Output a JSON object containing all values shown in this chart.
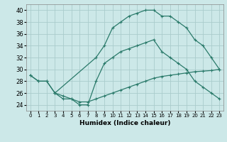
{
  "title": "",
  "xlabel": "Humidex (Indice chaleur)",
  "bg_color": "#cce8e8",
  "grid_color": "#aacccc",
  "line_color": "#2a7a6a",
  "xlim": [
    -0.5,
    23.5
  ],
  "ylim": [
    23,
    41
  ],
  "xticks": [
    0,
    1,
    2,
    3,
    4,
    5,
    6,
    7,
    8,
    9,
    10,
    11,
    12,
    13,
    14,
    15,
    16,
    17,
    18,
    19,
    20,
    21,
    22,
    23
  ],
  "yticks": [
    24,
    26,
    28,
    30,
    32,
    34,
    36,
    38,
    40
  ],
  "curve1_x": [
    0,
    1,
    2,
    3,
    8,
    9,
    10,
    11,
    12,
    13,
    14,
    15,
    16,
    17,
    18,
    19,
    20,
    21,
    22,
    23
  ],
  "curve1_y": [
    29,
    28,
    28,
    26,
    32,
    34,
    37,
    38,
    39,
    39.5,
    40,
    40,
    39,
    39,
    38,
    37,
    35,
    34,
    32,
    30
  ],
  "curve2_x": [
    0,
    1,
    2,
    3,
    4,
    5,
    6,
    7,
    8,
    9,
    10,
    11,
    12,
    13,
    14,
    15,
    16,
    17,
    18,
    19,
    20,
    21,
    22,
    23
  ],
  "curve2_y": [
    29,
    28,
    28,
    26,
    25,
    25,
    24,
    24,
    28,
    31,
    32,
    33,
    33.5,
    34,
    34.5,
    35,
    33,
    32,
    31,
    30,
    28,
    27,
    26,
    25
  ],
  "curve3_x": [
    3,
    4,
    5,
    6,
    7,
    8,
    9,
    10,
    11,
    12,
    13,
    14,
    15,
    16,
    17,
    18,
    19,
    20,
    21,
    22,
    23
  ],
  "curve3_y": [
    26,
    25.5,
    25,
    24.5,
    24.5,
    25,
    25.5,
    26,
    26.5,
    27,
    27.5,
    28,
    28.5,
    28.8,
    29,
    29.2,
    29.4,
    29.6,
    29.7,
    29.8,
    30
  ]
}
